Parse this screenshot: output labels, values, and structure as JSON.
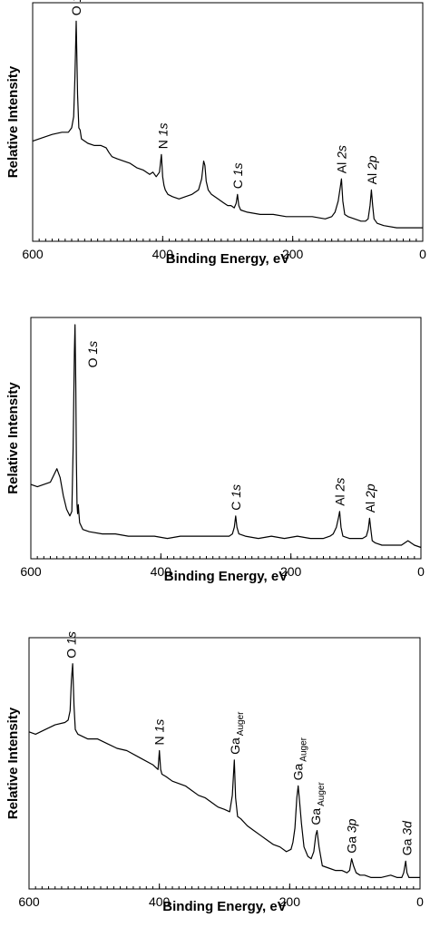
{
  "chart_data": [
    {
      "type": "line",
      "title": "",
      "xlabel": "Binding Energy, eV",
      "ylabel": "Relative Intensity",
      "xlim": [
        600,
        0
      ],
      "ylim": [
        0,
        1
      ],
      "xreversed": true,
      "xticks": [
        "600",
        "400",
        "200",
        "0"
      ],
      "grid": false,
      "legend": "none",
      "series": [
        {
          "x": [
            600,
            590,
            570,
            555,
            545,
            540,
            537,
            535,
            533,
            531,
            529,
            527,
            525,
            515,
            505,
            495,
            487,
            483,
            478,
            470,
            460,
            450,
            440,
            430,
            420,
            415,
            410,
            405,
            402,
            400,
            398,
            396,
            392,
            385,
            375,
            365,
            355,
            345,
            340,
            337,
            335,
            333,
            330,
            325,
            320,
            315,
            310,
            305,
            300,
            295,
            290,
            287,
            285,
            283,
            280,
            270,
            250,
            230,
            210,
            190,
            170,
            150,
            140,
            135,
            130,
            127,
            125,
            123,
            120,
            115,
            105,
            95,
            88,
            84,
            81,
            79,
            77,
            75,
            70,
            60,
            40,
            20,
            0
          ],
          "y": [
            0.41,
            0.42,
            0.44,
            0.45,
            0.45,
            0.47,
            0.52,
            0.7,
            0.95,
            0.62,
            0.47,
            0.46,
            0.42,
            0.4,
            0.39,
            0.39,
            0.38,
            0.36,
            0.34,
            0.33,
            0.32,
            0.31,
            0.29,
            0.28,
            0.26,
            0.27,
            0.25,
            0.27,
            0.35,
            0.25,
            0.21,
            0.19,
            0.17,
            0.16,
            0.15,
            0.16,
            0.17,
            0.19,
            0.24,
            0.32,
            0.3,
            0.23,
            0.19,
            0.17,
            0.16,
            0.15,
            0.14,
            0.13,
            0.12,
            0.12,
            0.11,
            0.13,
            0.17,
            0.12,
            0.1,
            0.09,
            0.08,
            0.08,
            0.07,
            0.07,
            0.07,
            0.06,
            0.07,
            0.09,
            0.14,
            0.2,
            0.24,
            0.14,
            0.08,
            0.07,
            0.06,
            0.05,
            0.05,
            0.06,
            0.12,
            0.19,
            0.12,
            0.06,
            0.04,
            0.03,
            0.02,
            0.02,
            0.02
          ]
        }
      ],
      "annotations": [
        {
          "x": 533,
          "main": "O ",
          "italic": "1s",
          "sub": ""
        },
        {
          "x": 400,
          "main": "N ",
          "italic": "1s",
          "sub": ""
        },
        {
          "x": 285,
          "main": "C ",
          "italic": "1s",
          "sub": ""
        },
        {
          "x": 125,
          "main": "Al ",
          "italic": "2s",
          "sub": ""
        },
        {
          "x": 78,
          "main": "Al ",
          "italic": "2p",
          "sub": ""
        }
      ]
    },
    {
      "type": "line",
      "title": "",
      "xlabel": "Binding Energy, eV",
      "ylabel": "Relative Intensity",
      "xlim": [
        600,
        0
      ],
      "ylim": [
        0,
        1
      ],
      "xreversed": true,
      "xticks": [
        "600",
        "400",
        "200",
        "0"
      ],
      "grid": false,
      "legend": "none",
      "series": [
        {
          "x": [
            600,
            590,
            580,
            570,
            565,
            560,
            555,
            550,
            545,
            540,
            537,
            535,
            533,
            532,
            531,
            530,
            529,
            528,
            527,
            526,
            525,
            520,
            510,
            490,
            470,
            450,
            430,
            410,
            390,
            370,
            350,
            330,
            310,
            295,
            290,
            287,
            285,
            283,
            280,
            270,
            250,
            230,
            210,
            190,
            170,
            150,
            140,
            135,
            130,
            127,
            125,
            123,
            120,
            110,
            100,
            90,
            84,
            81,
            79,
            77,
            75,
            70,
            60,
            50,
            30,
            20,
            10,
            0
          ],
          "y": [
            0.29,
            0.28,
            0.29,
            0.3,
            0.33,
            0.36,
            0.32,
            0.24,
            0.18,
            0.15,
            0.17,
            0.45,
            0.88,
            1.0,
            0.75,
            0.4,
            0.2,
            0.16,
            0.2,
            0.16,
            0.12,
            0.09,
            0.08,
            0.07,
            0.07,
            0.06,
            0.06,
            0.06,
            0.05,
            0.06,
            0.06,
            0.06,
            0.06,
            0.06,
            0.07,
            0.1,
            0.15,
            0.1,
            0.07,
            0.06,
            0.05,
            0.06,
            0.05,
            0.06,
            0.05,
            0.05,
            0.06,
            0.07,
            0.1,
            0.14,
            0.17,
            0.1,
            0.06,
            0.05,
            0.05,
            0.05,
            0.06,
            0.09,
            0.14,
            0.09,
            0.04,
            0.03,
            0.02,
            0.02,
            0.02,
            0.04,
            0.02,
            0.01
          ]
        }
      ],
      "annotations": [
        {
          "x": 505,
          "main": "O ",
          "italic": "1s",
          "sub": ""
        },
        {
          "x": 285,
          "main": "C ",
          "italic": "1s",
          "sub": ""
        },
        {
          "x": 125,
          "main": "Al ",
          "italic": "2s",
          "sub": ""
        },
        {
          "x": 78,
          "main": "Al ",
          "italic": "2p",
          "sub": ""
        }
      ]
    },
    {
      "type": "line",
      "title": "",
      "xlabel": "Binding Energy, eV",
      "ylabel": "Relative Intensity",
      "xlim": [
        600,
        0
      ],
      "ylim": [
        0,
        1
      ],
      "xreversed": true,
      "xticks": [
        "600",
        "400",
        "200",
        "0"
      ],
      "grid": false,
      "legend": "none",
      "series": [
        {
          "x": [
            600,
            590,
            575,
            560,
            545,
            540,
            537,
            535,
            533,
            531,
            529,
            527,
            525,
            510,
            495,
            480,
            465,
            450,
            430,
            410,
            402,
            400,
            398,
            396,
            390,
            380,
            370,
            360,
            350,
            340,
            330,
            320,
            310,
            300,
            292,
            288,
            285,
            283,
            280,
            275,
            265,
            255,
            245,
            235,
            225,
            215,
            205,
            198,
            195,
            192,
            189,
            187,
            185,
            182,
            178,
            172,
            167,
            163,
            160,
            158,
            155,
            150,
            140,
            130,
            120,
            112,
            108,
            105,
            102,
            98,
            92,
            85,
            75,
            60,
            45,
            35,
            28,
            25,
            22,
            20,
            17,
            12,
            5,
            0
          ],
          "y": [
            0.63,
            0.62,
            0.64,
            0.66,
            0.67,
            0.68,
            0.72,
            0.85,
            0.92,
            0.74,
            0.64,
            0.63,
            0.62,
            0.6,
            0.6,
            0.58,
            0.56,
            0.55,
            0.52,
            0.49,
            0.47,
            0.55,
            0.47,
            0.45,
            0.44,
            0.42,
            0.41,
            0.4,
            0.38,
            0.36,
            0.35,
            0.33,
            0.31,
            0.3,
            0.29,
            0.36,
            0.51,
            0.35,
            0.27,
            0.26,
            0.23,
            0.21,
            0.19,
            0.17,
            0.15,
            0.14,
            0.12,
            0.13,
            0.16,
            0.22,
            0.35,
            0.4,
            0.34,
            0.24,
            0.14,
            0.1,
            0.09,
            0.12,
            0.19,
            0.21,
            0.14,
            0.06,
            0.05,
            0.04,
            0.04,
            0.03,
            0.04,
            0.09,
            0.06,
            0.03,
            0.02,
            0.02,
            0.01,
            0.01,
            0.02,
            0.01,
            0.01,
            0.03,
            0.08,
            0.03,
            0.01,
            0.01,
            0.01,
            0.01
          ]
        }
      ],
      "annotations": [
        {
          "x": 535,
          "main": "O ",
          "italic": "1s",
          "sub": ""
        },
        {
          "x": 400,
          "main": "N ",
          "italic": "1s",
          "sub": ""
        },
        {
          "x": 284,
          "main": "Ga",
          "italic": "",
          "sub": "Auger"
        },
        {
          "x": 187,
          "main": "Ga",
          "italic": "",
          "sub": "Auger"
        },
        {
          "x": 160,
          "main": "Ga",
          "italic": "",
          "sub": "Auger"
        },
        {
          "x": 105,
          "main": "Ga ",
          "italic": "3p",
          "sub": ""
        },
        {
          "x": 20,
          "main": "Ga ",
          "italic": "3d",
          "sub": ""
        }
      ]
    }
  ]
}
